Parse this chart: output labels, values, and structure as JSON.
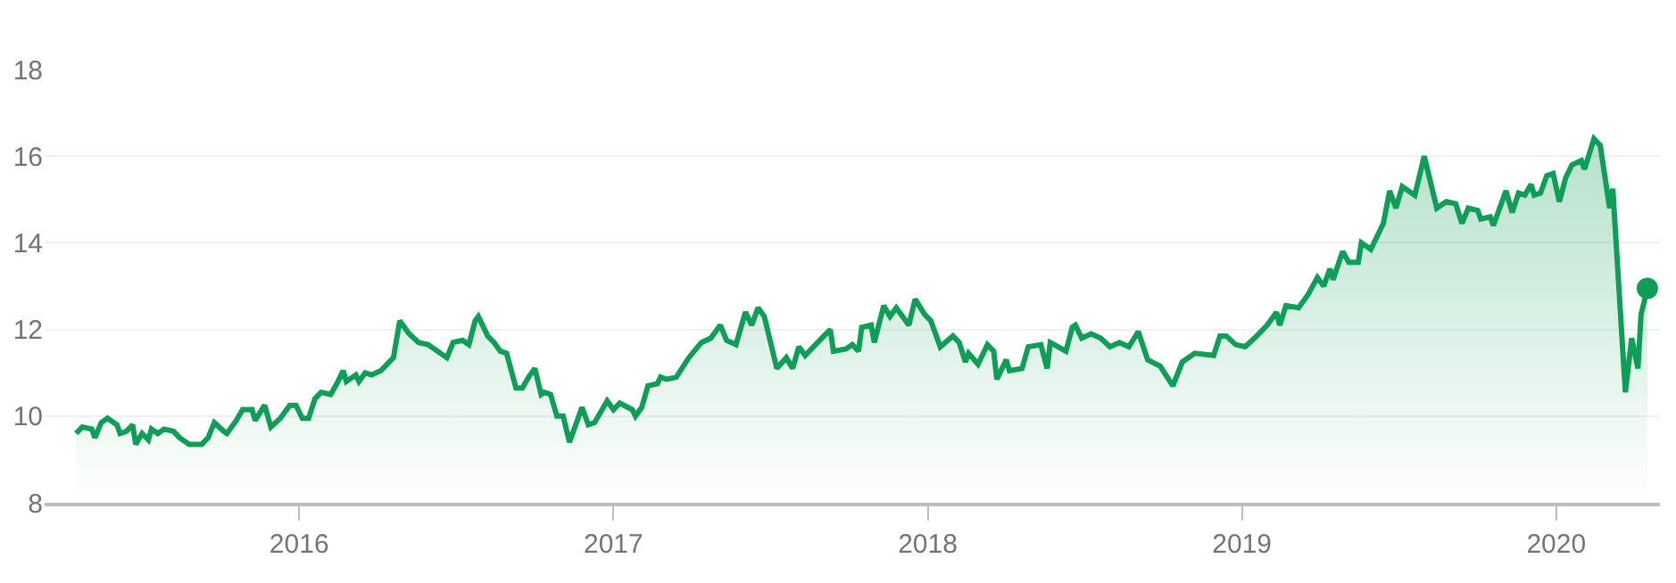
{
  "chart_data": {
    "type": "area",
    "xlim": [
      2015.19,
      2020.33
    ],
    "ylim": [
      8,
      18
    ],
    "xticks": [
      2016,
      2017,
      2018,
      2019,
      2020
    ],
    "yticks": [
      8,
      10,
      12,
      14,
      16,
      18
    ],
    "grid": "y",
    "series": [
      {
        "color": "#0f9d58",
        "x": [
          2015.29,
          2015.31,
          2015.34,
          2015.35,
          2015.37,
          2015.39,
          2015.42,
          2015.43,
          2015.45,
          2015.47,
          2015.48,
          2015.5,
          2015.52,
          2015.53,
          2015.55,
          2015.57,
          2015.6,
          2015.62,
          2015.65,
          2015.69,
          2015.71,
          2015.73,
          2015.76,
          2015.77,
          2015.8,
          2015.82,
          2015.85,
          2015.86,
          2015.89,
          2015.91,
          2015.94,
          2015.97,
          2015.99,
          2016.01,
          2016.03,
          2016.05,
          2016.07,
          2016.1,
          2016.12,
          2016.14,
          2016.15,
          2016.18,
          2016.19,
          2016.21,
          2016.23,
          2016.26,
          2016.3,
          2016.32,
          2016.35,
          2016.38,
          2016.41,
          2016.44,
          2016.47,
          2016.49,
          2016.52,
          2016.54,
          2016.56,
          2016.57,
          2016.6,
          2016.62,
          2016.64,
          2016.66,
          2016.69,
          2016.71,
          2016.73,
          2016.75,
          2016.77,
          2016.78,
          2016.8,
          2016.82,
          2016.84,
          2016.86,
          2016.88,
          2016.9,
          2016.92,
          2016.94,
          2016.98,
          2017.0,
          2017.02,
          2017.06,
          2017.07,
          2017.09,
          2017.11,
          2017.14,
          2017.15,
          2017.17,
          2017.2,
          2017.24,
          2017.28,
          2017.31,
          2017.34,
          2017.36,
          2017.39,
          2017.42,
          2017.44,
          2017.46,
          2017.48,
          2017.52,
          2017.55,
          2017.57,
          2017.59,
          2017.61,
          2017.65,
          2017.69,
          2017.7,
          2017.74,
          2017.76,
          2017.78,
          2017.79,
          2017.82,
          2017.83,
          2017.86,
          2017.88,
          2017.9,
          2017.94,
          2017.96,
          2017.99,
          2018.01,
          2018.04,
          2018.08,
          2018.1,
          2018.12,
          2018.13,
          2018.16,
          2018.19,
          2018.21,
          2018.22,
          2018.25,
          2018.26,
          2018.3,
          2018.32,
          2018.36,
          2018.38,
          2018.39,
          2018.44,
          2018.46,
          2018.47,
          2018.49,
          2018.52,
          2018.55,
          2018.58,
          2018.61,
          2018.64,
          2018.67,
          2018.7,
          2018.74,
          2018.78,
          2018.81,
          2018.85,
          2018.91,
          2018.93,
          2018.95,
          2018.98,
          2019.01,
          2019.04,
          2019.08,
          2019.11,
          2019.12,
          2019.14,
          2019.18,
          2019.21,
          2019.24,
          2019.26,
          2019.28,
          2019.29,
          2019.32,
          2019.34,
          2019.37,
          2019.38,
          2019.41,
          2019.45,
          2019.47,
          2019.49,
          2019.51,
          2019.55,
          2019.58,
          2019.62,
          2019.65,
          2019.68,
          2019.7,
          2019.72,
          2019.75,
          2019.76,
          2019.79,
          2019.8,
          2019.84,
          2019.86,
          2019.88,
          2019.9,
          2019.92,
          2019.93,
          2019.95,
          2019.97,
          2019.99,
          2020.01,
          2020.03,
          2020.05,
          2020.08,
          2020.09,
          2020.12,
          2020.14,
          2020.17,
          2020.18,
          2020.22,
          2020.24,
          2020.26,
          2020.27,
          2020.29
        ],
        "values": [
          9.6,
          9.75,
          9.7,
          9.5,
          9.85,
          9.95,
          9.8,
          9.6,
          9.65,
          9.8,
          9.35,
          9.6,
          9.45,
          9.7,
          9.6,
          9.7,
          9.65,
          9.5,
          9.35,
          9.35,
          9.5,
          9.85,
          9.65,
          9.6,
          9.9,
          10.15,
          10.15,
          9.9,
          10.25,
          9.75,
          9.95,
          10.25,
          10.25,
          9.95,
          9.95,
          10.4,
          10.55,
          10.5,
          10.75,
          11.05,
          10.8,
          10.95,
          10.8,
          11.0,
          10.95,
          11.05,
          11.35,
          12.2,
          11.9,
          11.7,
          11.65,
          11.5,
          11.35,
          11.7,
          11.75,
          11.65,
          12.2,
          12.3,
          11.85,
          11.7,
          11.5,
          11.45,
          10.65,
          10.65,
          10.9,
          11.1,
          10.5,
          10.55,
          10.5,
          10.0,
          10.0,
          9.4,
          9.8,
          10.2,
          9.8,
          9.85,
          10.35,
          10.15,
          10.3,
          10.15,
          10.0,
          10.2,
          10.7,
          10.75,
          10.9,
          10.85,
          10.9,
          11.35,
          11.7,
          11.8,
          12.1,
          11.75,
          11.65,
          12.4,
          12.1,
          12.5,
          12.3,
          11.1,
          11.35,
          11.1,
          11.6,
          11.4,
          11.7,
          12.0,
          11.5,
          11.55,
          11.65,
          11.5,
          12.05,
          12.1,
          11.7,
          12.55,
          12.3,
          12.5,
          12.1,
          12.7,
          12.35,
          12.2,
          11.6,
          11.85,
          11.7,
          11.25,
          11.45,
          11.2,
          11.65,
          11.5,
          10.85,
          11.3,
          11.05,
          11.1,
          11.6,
          11.65,
          11.1,
          11.7,
          11.5,
          12.05,
          12.1,
          11.8,
          11.9,
          11.8,
          11.6,
          11.7,
          11.6,
          11.95,
          11.3,
          11.15,
          10.7,
          11.25,
          11.45,
          11.4,
          11.85,
          11.85,
          11.65,
          11.6,
          11.8,
          12.1,
          12.4,
          12.1,
          12.55,
          12.5,
          12.8,
          13.2,
          13.0,
          13.4,
          13.15,
          13.8,
          13.55,
          13.55,
          14.0,
          13.85,
          14.45,
          15.2,
          14.8,
          15.3,
          15.1,
          16.0,
          14.8,
          14.95,
          14.9,
          14.45,
          14.8,
          14.75,
          14.55,
          14.6,
          14.4,
          15.2,
          14.7,
          15.15,
          15.1,
          15.35,
          15.1,
          15.15,
          15.55,
          15.6,
          14.95,
          15.5,
          15.8,
          15.9,
          15.7,
          16.4,
          16.25,
          14.8,
          15.25,
          10.55,
          11.8,
          11.1,
          12.35,
          12.95
        ]
      },
      {
        "type": "scatter",
        "marker": "circle",
        "color": "#0f9d58",
        "x": [
          2020.29
        ],
        "values": [
          12.95
        ]
      }
    ]
  }
}
